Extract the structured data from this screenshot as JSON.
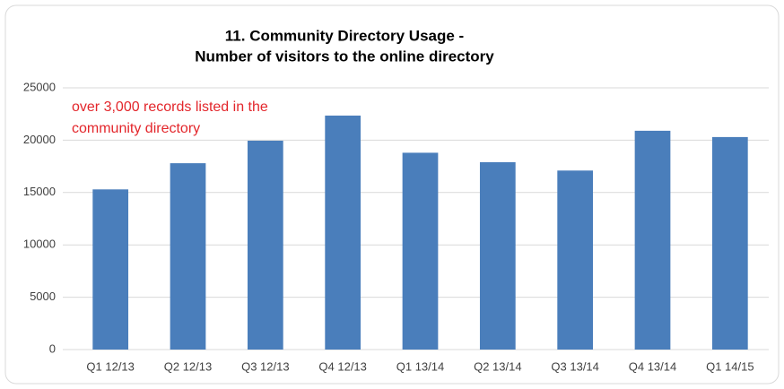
{
  "chart_data": {
    "type": "bar",
    "title": [
      "11. Community Directory Usage -",
      "Number of visitors to the online directory"
    ],
    "annotation": [
      "over 3,000 records listed in the",
      "community directory"
    ],
    "categories": [
      "Q1 12/13",
      "Q2 12/13",
      "Q3 12/13",
      "Q4 12/13",
      "Q1 13/14",
      "Q2 13/14",
      "Q3 13/14",
      "Q4 13/14",
      "Q1 14/15"
    ],
    "values": [
      15300,
      17800,
      19950,
      22350,
      18800,
      17900,
      17100,
      20900,
      20300
    ],
    "color": "#4a7ebb",
    "ylim": [
      0,
      25000
    ],
    "yticks": [
      0,
      5000,
      10000,
      15000,
      20000,
      25000
    ],
    "grid": true
  }
}
